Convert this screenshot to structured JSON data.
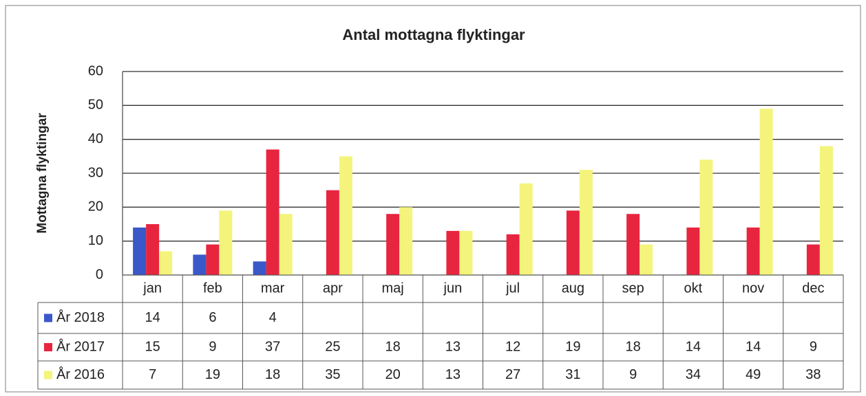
{
  "chart_data": {
    "type": "bar",
    "title": "Antal mottagna flyktingar",
    "y_label": "Mottagna flyktingar",
    "categories": [
      "jan",
      "feb",
      "mar",
      "apr",
      "maj",
      "jun",
      "jul",
      "aug",
      "sep",
      "okt",
      "nov",
      "dec"
    ],
    "series": [
      {
        "name": "År 2018",
        "color": "#3a58c8",
        "values": [
          14,
          6,
          4,
          null,
          null,
          null,
          null,
          null,
          null,
          null,
          null,
          null
        ]
      },
      {
        "name": "År 2017",
        "color": "#e8253f",
        "values": [
          15,
          9,
          37,
          25,
          18,
          13,
          12,
          19,
          18,
          14,
          14,
          9
        ]
      },
      {
        "name": "År 2016",
        "color": "#f4f47c",
        "values": [
          7,
          19,
          18,
          35,
          20,
          13,
          27,
          31,
          9,
          34,
          49,
          38
        ]
      }
    ],
    "ylim": [
      0,
      60
    ],
    "yticks": [
      0,
      10,
      20,
      30,
      40,
      50,
      60
    ],
    "grid": true
  }
}
